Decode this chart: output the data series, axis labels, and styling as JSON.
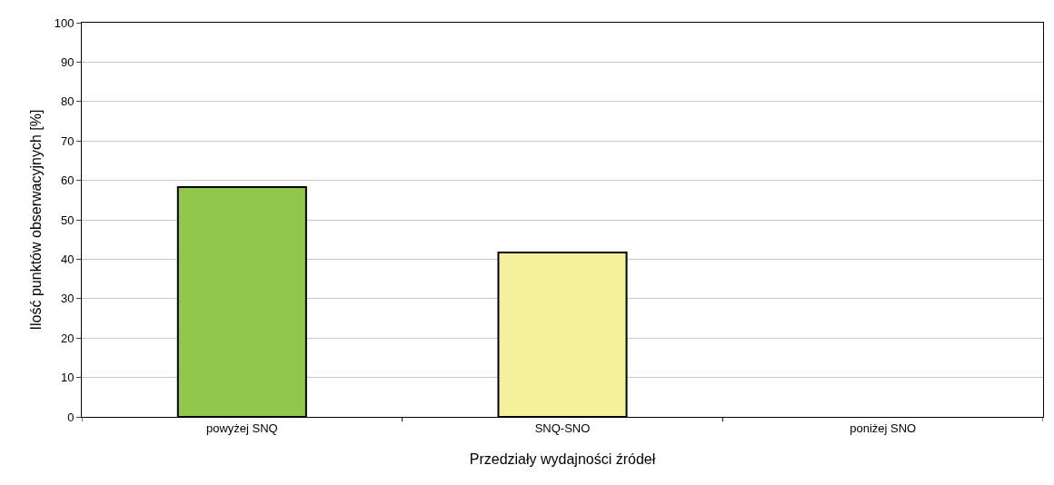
{
  "chart_data": {
    "type": "bar",
    "xlabel": "Przedziały wydajności źródeł",
    "ylabel": "Ilość punktów obserwacyjnych [%]",
    "categories": [
      "powyżej SNQ",
      "SNQ-SNO",
      "poniżej SNO"
    ],
    "values": [
      58.3,
      41.7,
      0
    ],
    "colors": [
      "#8fc84a",
      "#f5f19a",
      null
    ],
    "ylim": [
      0,
      100
    ],
    "yticks": [
      0,
      10,
      20,
      30,
      40,
      50,
      60,
      70,
      80,
      90,
      100
    ],
    "grid": "y"
  }
}
